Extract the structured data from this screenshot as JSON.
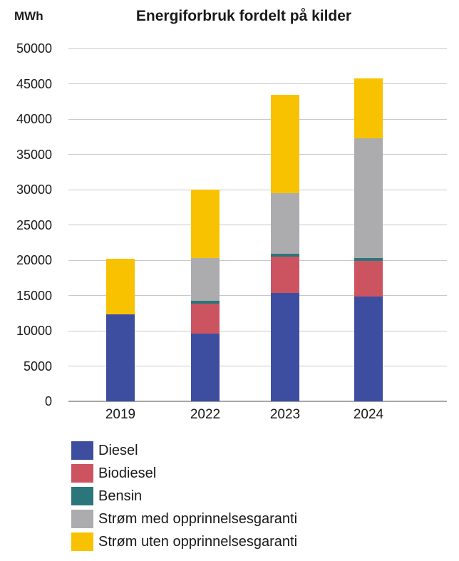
{
  "header": {
    "unit_label": "MWh"
  },
  "chart_data": {
    "type": "bar",
    "stacked": true,
    "title": "Energiforbruk fordelt på kilder",
    "ylabel": "MWh",
    "xlabel": "",
    "categories": [
      "2019",
      "2022",
      "2023",
      "2024"
    ],
    "series": [
      {
        "name": "Diesel",
        "color": "#3D4EA1",
        "values": [
          12300,
          9600,
          15400,
          14900
        ]
      },
      {
        "name": "Biodiesel",
        "color": "#CC5461",
        "values": [
          0,
          4200,
          5100,
          5000
        ]
      },
      {
        "name": "Bensin",
        "color": "#2B767A",
        "values": [
          0,
          400,
          400,
          450
        ]
      },
      {
        "name": "Strøm med opprinnelsesgaranti",
        "color": "#ACABAD",
        "values": [
          0,
          6100,
          8600,
          16900
        ]
      },
      {
        "name": "Strøm uten opprinnelsesgaranti",
        "color": "#F8C200",
        "values": [
          7900,
          9700,
          13900,
          8550
        ]
      }
    ],
    "ylim": [
      0,
      50000
    ],
    "yticks": [
      0,
      5000,
      10000,
      15000,
      20000,
      25000,
      30000,
      35000,
      40000,
      45000,
      50000
    ],
    "grid": true,
    "legend_position": "bottom-left",
    "colors": {
      "grid": "#C9C9C9",
      "axis": "#A6A6A6",
      "text": "#1A1A1A"
    }
  }
}
